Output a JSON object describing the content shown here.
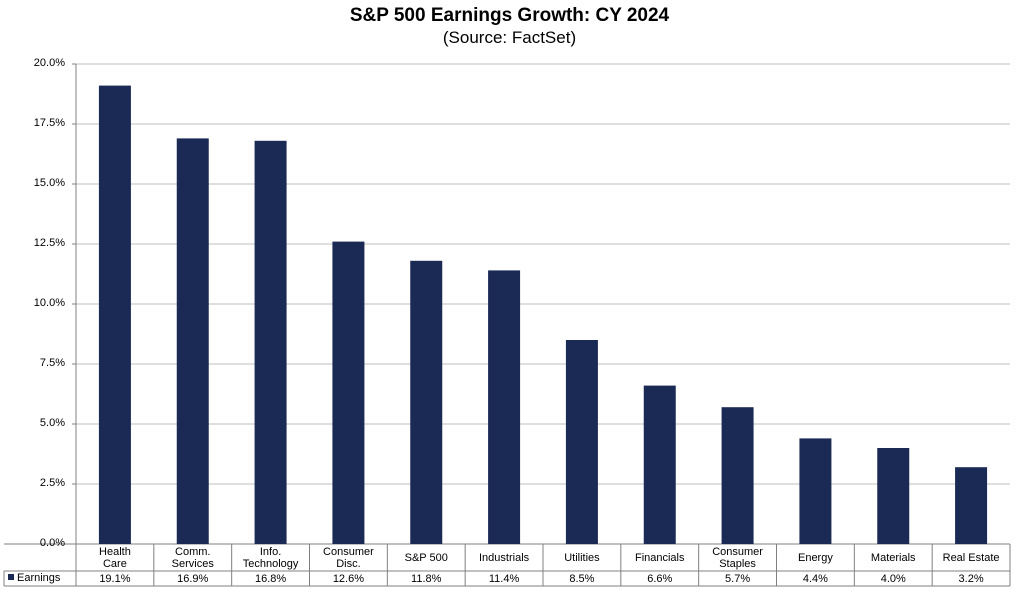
{
  "chart_data": {
    "type": "bar",
    "title": "S&P 500 Earnings Growth: CY 2024",
    "subtitle": "(Source: FactSet)",
    "categories": [
      "Health\nCare",
      "Comm.\nServices",
      "Info.\nTechnology",
      "Consumer\nDisc.",
      "S&P 500",
      "Industrials",
      "Utilities",
      "Financials",
      "Consumer\nStaples",
      "Energy",
      "Materials",
      "Real Estate"
    ],
    "series": [
      {
        "name": "Earnings",
        "values": [
          19.1,
          16.9,
          16.8,
          12.6,
          11.8,
          11.4,
          8.5,
          6.6,
          5.7,
          4.4,
          4.0,
          3.2
        ]
      }
    ],
    "value_labels": [
      "19.1%",
      "16.9%",
      "16.8%",
      "12.6%",
      "11.8%",
      "11.4%",
      "8.5%",
      "6.6%",
      "5.7%",
      "4.4%",
      "4.0%",
      "3.2%"
    ],
    "yticks": [
      "0.0%",
      "2.5%",
      "5.0%",
      "7.5%",
      "10.0%",
      "12.5%",
      "15.0%",
      "17.5%",
      "20.0%"
    ],
    "ylim": [
      0,
      20
    ],
    "grid": true,
    "legend_position": "data-table-bottom-left",
    "colors": {
      "bar": "#1b2a55",
      "grid": "#bfbfbf",
      "axis": "#808080"
    }
  }
}
